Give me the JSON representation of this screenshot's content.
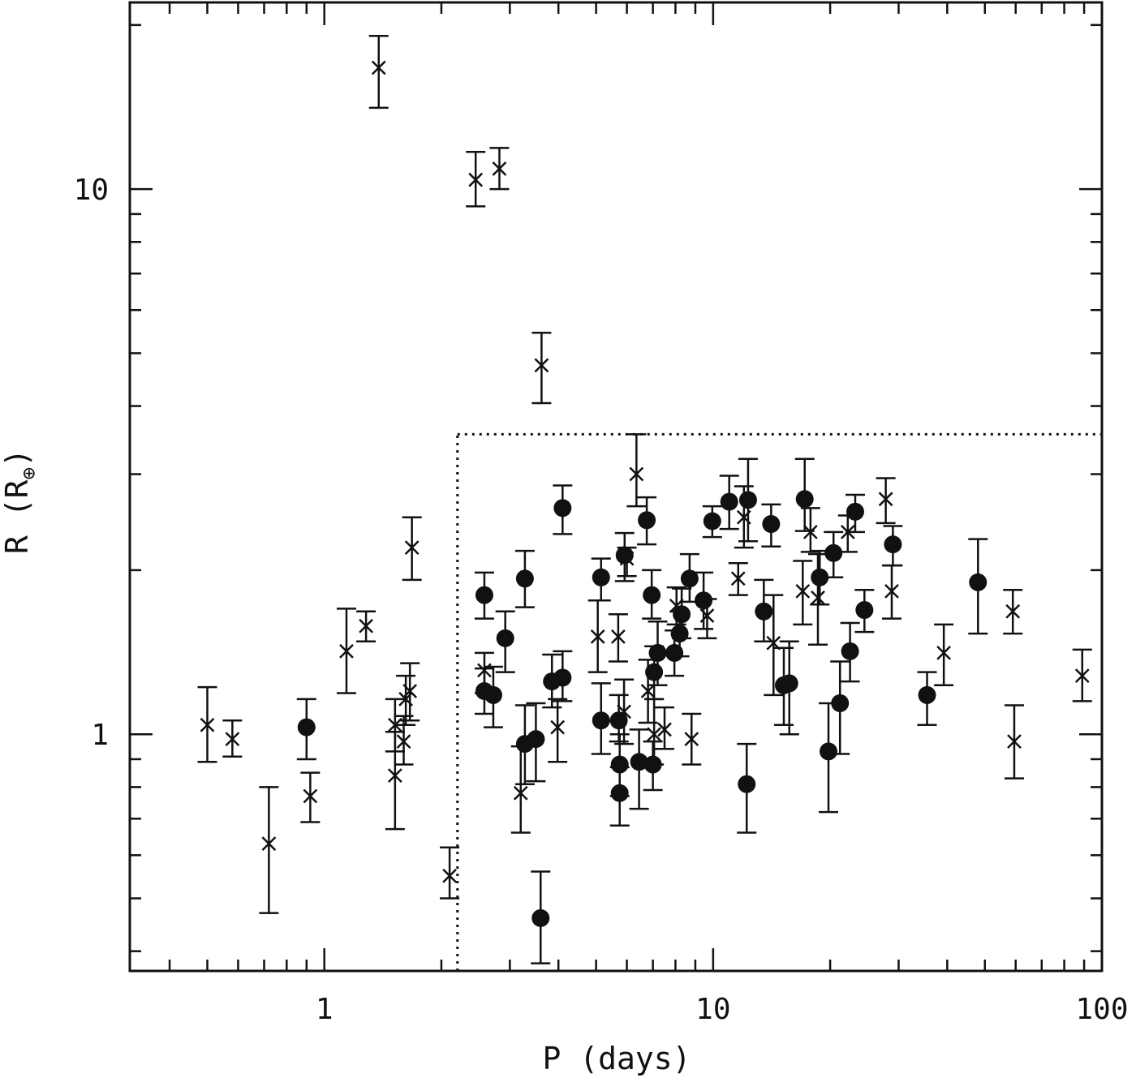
{
  "chart_data": {
    "type": "scatter",
    "xlabel": "P (days)",
    "ylabel_main": "R (R",
    "ylabel_sub": "⊕",
    "ylabel_close": ")",
    "xscale": "log",
    "yscale": "log",
    "xlim": [
      0.316,
      100
    ],
    "ylim": [
      0.368,
      22
    ],
    "x_tick_labels": [
      {
        "value": 1,
        "label": "1"
      },
      {
        "value": 10,
        "label": "10"
      },
      {
        "value": 100,
        "label": "100"
      }
    ],
    "y_tick_labels": [
      {
        "value": 1,
        "label": "1"
      },
      {
        "value": 10,
        "label": "10"
      }
    ],
    "x_minor_ticks": [
      0.4,
      0.5,
      0.6,
      0.7,
      0.8,
      0.9,
      2,
      3,
      4,
      5,
      6,
      7,
      8,
      9,
      20,
      30,
      40,
      50,
      60,
      70,
      80,
      90
    ],
    "y_minor_ticks": [
      0.4,
      0.5,
      0.6,
      0.7,
      0.8,
      0.9,
      2,
      3,
      4,
      5,
      6,
      7,
      8,
      9,
      20
    ],
    "grid": false,
    "legend": "none",
    "colors": {
      "marker": "#111111",
      "axis": "#111111",
      "boundary": "#111111"
    },
    "boundary_box": {
      "x_min": 2.2,
      "y_max": 3.55,
      "style": "dotted"
    },
    "series": [
      {
        "marker": "cross",
        "points": [
          {
            "x": 0.5,
            "y": 1.04,
            "lo": 0.89,
            "hi": 1.22
          },
          {
            "x": 0.58,
            "y": 0.98,
            "lo": 0.91,
            "hi": 1.06
          },
          {
            "x": 0.72,
            "y": 0.63,
            "lo": 0.47,
            "hi": 0.8
          },
          {
            "x": 0.92,
            "y": 0.77,
            "lo": 0.69,
            "hi": 0.85
          },
          {
            "x": 1.14,
            "y": 1.42,
            "lo": 1.19,
            "hi": 1.7
          },
          {
            "x": 1.28,
            "y": 1.58,
            "lo": 1.48,
            "hi": 1.68
          },
          {
            "x": 1.38,
            "y": 16.7,
            "lo": 14.1,
            "hi": 19.1
          },
          {
            "x": 1.52,
            "y": 0.84,
            "lo": 0.67,
            "hi": 1.01
          },
          {
            "x": 1.52,
            "y": 1.04,
            "lo": 0.93,
            "hi": 1.16
          },
          {
            "x": 1.6,
            "y": 0.97,
            "lo": 0.88,
            "hi": 1.08
          },
          {
            "x": 1.62,
            "y": 1.16,
            "lo": 1.04,
            "hi": 1.28
          },
          {
            "x": 1.66,
            "y": 1.2,
            "lo": 1.06,
            "hi": 1.35
          },
          {
            "x": 1.68,
            "y": 2.2,
            "lo": 1.92,
            "hi": 2.5
          },
          {
            "x": 2.1,
            "y": 0.55,
            "lo": 0.5,
            "hi": 0.62
          },
          {
            "x": 2.45,
            "y": 10.4,
            "lo": 9.3,
            "hi": 11.7
          },
          {
            "x": 2.58,
            "y": 1.31,
            "lo": 1.19,
            "hi": 1.41
          },
          {
            "x": 2.82,
            "y": 10.9,
            "lo": 10.0,
            "hi": 11.9
          },
          {
            "x": 3.2,
            "y": 0.78,
            "lo": 0.66,
            "hi": 0.95
          },
          {
            "x": 3.62,
            "y": 4.75,
            "lo": 4.05,
            "hi": 5.45
          },
          {
            "x": 3.98,
            "y": 1.03,
            "lo": 0.89,
            "hi": 1.16
          },
          {
            "x": 5.05,
            "y": 1.51,
            "lo": 1.3,
            "hi": 1.76
          },
          {
            "x": 5.7,
            "y": 1.51,
            "lo": 1.36,
            "hi": 1.66
          },
          {
            "x": 5.9,
            "y": 1.1,
            "lo": 0.96,
            "hi": 1.26
          },
          {
            "x": 6.0,
            "y": 2.1,
            "lo": 1.95,
            "hi": 2.2
          },
          {
            "x": 6.35,
            "y": 3.0,
            "lo": 2.62,
            "hi": 3.55
          },
          {
            "x": 6.8,
            "y": 1.2,
            "lo": 1.05,
            "hi": 1.37
          },
          {
            "x": 7.05,
            "y": 1.0,
            "lo": 0.88,
            "hi": 1.16
          },
          {
            "x": 7.5,
            "y": 1.02,
            "lo": 0.94,
            "hi": 1.12
          },
          {
            "x": 8.05,
            "y": 1.72,
            "lo": 1.59,
            "hi": 1.86
          },
          {
            "x": 8.8,
            "y": 0.98,
            "lo": 0.88,
            "hi": 1.09
          },
          {
            "x": 9.65,
            "y": 1.65,
            "lo": 1.5,
            "hi": 1.77
          },
          {
            "x": 11.6,
            "y": 1.93,
            "lo": 1.8,
            "hi": 2.06
          },
          {
            "x": 12.0,
            "y": 2.5,
            "lo": 2.2,
            "hi": 2.85
          },
          {
            "x": 14.3,
            "y": 1.47,
            "lo": 1.18,
            "hi": 1.8
          },
          {
            "x": 17.0,
            "y": 1.83,
            "lo": 1.59,
            "hi": 2.08
          },
          {
            "x": 17.8,
            "y": 2.35,
            "lo": 2.16,
            "hi": 2.6
          },
          {
            "x": 18.6,
            "y": 1.78,
            "lo": 1.46,
            "hi": 2.14
          },
          {
            "x": 22.2,
            "y": 2.35,
            "lo": 2.16,
            "hi": 2.52
          },
          {
            "x": 27.8,
            "y": 2.7,
            "lo": 2.44,
            "hi": 2.95
          },
          {
            "x": 28.8,
            "y": 1.83,
            "lo": 1.63,
            "hi": 2.04
          },
          {
            "x": 39.2,
            "y": 1.41,
            "lo": 1.23,
            "hi": 1.59
          },
          {
            "x": 59.0,
            "y": 1.68,
            "lo": 1.53,
            "hi": 1.84
          },
          {
            "x": 59.5,
            "y": 0.97,
            "lo": 0.83,
            "hi": 1.13
          },
          {
            "x": 89.0,
            "y": 1.28,
            "lo": 1.15,
            "hi": 1.43
          }
        ]
      },
      {
        "marker": "filled-circle",
        "points": [
          {
            "x": 0.9,
            "y": 1.03,
            "lo": 0.9,
            "hi": 1.16
          },
          {
            "x": 2.58,
            "y": 1.8,
            "lo": 1.63,
            "hi": 1.98
          },
          {
            "x": 2.58,
            "y": 1.2,
            "lo": 1.09,
            "hi": 1.32
          },
          {
            "x": 2.72,
            "y": 1.18,
            "lo": 1.03,
            "hi": 1.33
          },
          {
            "x": 2.92,
            "y": 1.5,
            "lo": 1.3,
            "hi": 1.68
          },
          {
            "x": 3.28,
            "y": 1.93,
            "lo": 1.71,
            "hi": 2.17
          },
          {
            "x": 3.28,
            "y": 0.96,
            "lo": 0.81,
            "hi": 1.13
          },
          {
            "x": 3.5,
            "y": 0.98,
            "lo": 0.82,
            "hi": 1.14
          },
          {
            "x": 3.6,
            "y": 0.46,
            "lo": 0.38,
            "hi": 0.56
          },
          {
            "x": 3.85,
            "y": 1.25,
            "lo": 1.12,
            "hi": 1.4
          },
          {
            "x": 4.1,
            "y": 2.6,
            "lo": 2.33,
            "hi": 2.86
          },
          {
            "x": 4.1,
            "y": 1.27,
            "lo": 1.15,
            "hi": 1.42
          },
          {
            "x": 5.15,
            "y": 1.94,
            "lo": 1.76,
            "hi": 2.1
          },
          {
            "x": 5.15,
            "y": 1.06,
            "lo": 0.92,
            "hi": 1.24
          },
          {
            "x": 5.72,
            "y": 1.06,
            "lo": 0.97,
            "hi": 1.18
          },
          {
            "x": 5.75,
            "y": 0.88,
            "lo": 0.77,
            "hi": 1.0
          },
          {
            "x": 5.75,
            "y": 0.78,
            "lo": 0.68,
            "hi": 0.87
          },
          {
            "x": 5.92,
            "y": 2.13,
            "lo": 1.91,
            "hi": 2.34
          },
          {
            "x": 6.45,
            "y": 0.89,
            "lo": 0.73,
            "hi": 1.02
          },
          {
            "x": 6.75,
            "y": 2.47,
            "lo": 2.23,
            "hi": 2.72
          },
          {
            "x": 6.95,
            "y": 1.8,
            "lo": 1.63,
            "hi": 2.0
          },
          {
            "x": 7.0,
            "y": 0.88,
            "lo": 0.79,
            "hi": 0.97
          },
          {
            "x": 7.05,
            "y": 1.3,
            "lo": 1.16,
            "hi": 1.45
          },
          {
            "x": 7.2,
            "y": 1.41,
            "lo": 1.23,
            "hi": 1.61
          },
          {
            "x": 7.95,
            "y": 1.41,
            "lo": 1.28,
            "hi": 1.55
          },
          {
            "x": 8.2,
            "y": 1.53,
            "lo": 1.39,
            "hi": 1.68
          },
          {
            "x": 8.3,
            "y": 1.66,
            "lo": 1.5,
            "hi": 1.85
          },
          {
            "x": 8.7,
            "y": 1.93,
            "lo": 1.75,
            "hi": 2.14
          },
          {
            "x": 9.45,
            "y": 1.76,
            "lo": 1.56,
            "hi": 1.98
          },
          {
            "x": 9.95,
            "y": 2.46,
            "lo": 2.3,
            "hi": 2.62
          },
          {
            "x": 11.0,
            "y": 2.67,
            "lo": 2.38,
            "hi": 2.98
          },
          {
            "x": 12.3,
            "y": 2.69,
            "lo": 2.26,
            "hi": 3.2
          },
          {
            "x": 12.2,
            "y": 0.81,
            "lo": 0.66,
            "hi": 0.96
          },
          {
            "x": 13.5,
            "y": 1.68,
            "lo": 1.48,
            "hi": 1.92
          },
          {
            "x": 14.1,
            "y": 2.43,
            "lo": 2.21,
            "hi": 2.64
          },
          {
            "x": 15.2,
            "y": 1.23,
            "lo": 1.04,
            "hi": 1.44
          },
          {
            "x": 15.7,
            "y": 1.24,
            "lo": 1.0,
            "hi": 1.48
          },
          {
            "x": 17.2,
            "y": 2.7,
            "lo": 2.36,
            "hi": 3.2
          },
          {
            "x": 18.8,
            "y": 1.94,
            "lo": 1.73,
            "hi": 2.17
          },
          {
            "x": 19.8,
            "y": 0.93,
            "lo": 0.72,
            "hi": 1.14
          },
          {
            "x": 20.4,
            "y": 2.15,
            "lo": 1.94,
            "hi": 2.35
          },
          {
            "x": 21.2,
            "y": 1.14,
            "lo": 0.92,
            "hi": 1.36
          },
          {
            "x": 22.5,
            "y": 1.42,
            "lo": 1.25,
            "hi": 1.6
          },
          {
            "x": 23.2,
            "y": 2.56,
            "lo": 2.35,
            "hi": 2.75
          },
          {
            "x": 24.5,
            "y": 1.69,
            "lo": 1.54,
            "hi": 1.84
          },
          {
            "x": 29.0,
            "y": 2.23,
            "lo": 2.04,
            "hi": 2.41
          },
          {
            "x": 35.5,
            "y": 1.18,
            "lo": 1.04,
            "hi": 1.3
          },
          {
            "x": 48.0,
            "y": 1.9,
            "lo": 1.53,
            "hi": 2.28
          }
        ]
      }
    ]
  }
}
